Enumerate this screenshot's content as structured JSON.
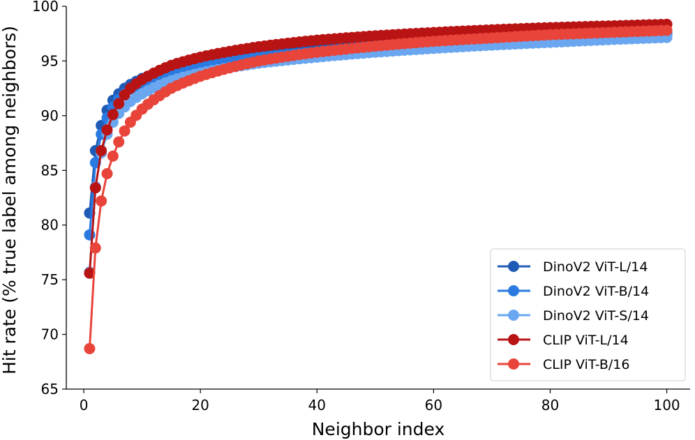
{
  "chart_data": {
    "type": "line",
    "title": "",
    "xlabel": "Neighbor index",
    "ylabel": "Hit rate (% true label among neighbors)",
    "xlim": [
      -3,
      104
    ],
    "ylim": [
      65,
      100
    ],
    "xticks": [
      0,
      20,
      40,
      60,
      80,
      100
    ],
    "yticks": [
      65,
      70,
      75,
      80,
      85,
      90,
      95,
      100
    ],
    "grid": false,
    "legend_position": "lower-right",
    "x": "1..100",
    "series": [
      {
        "name": "DinoV2 ViT-L/14",
        "color": "#1f5bb5",
        "anchors": [
          [
            1,
            81.1
          ],
          [
            2,
            86.8
          ],
          [
            3,
            89.1
          ],
          [
            4,
            90.5
          ],
          [
            5,
            91.4
          ],
          [
            6,
            92.0
          ],
          [
            7,
            92.5
          ],
          [
            8,
            92.85
          ],
          [
            10,
            93.4
          ],
          [
            15,
            94.3
          ],
          [
            20,
            94.9
          ],
          [
            30,
            95.6
          ],
          [
            40,
            96.05
          ],
          [
            50,
            96.4
          ],
          [
            60,
            96.7
          ],
          [
            70,
            96.95
          ],
          [
            80,
            97.2
          ],
          [
            90,
            97.4
          ],
          [
            100,
            97.6
          ]
        ]
      },
      {
        "name": "DinoV2 ViT-B/14",
        "color": "#2a7ae2",
        "anchors": [
          [
            1,
            79.1
          ],
          [
            2,
            85.7
          ],
          [
            3,
            88.3
          ],
          [
            4,
            89.8
          ],
          [
            5,
            90.8
          ],
          [
            6,
            91.5
          ],
          [
            7,
            92.0
          ],
          [
            8,
            92.4
          ],
          [
            10,
            93.0
          ],
          [
            15,
            94.0
          ],
          [
            20,
            94.6
          ],
          [
            30,
            95.3
          ],
          [
            40,
            95.8
          ],
          [
            50,
            96.2
          ],
          [
            60,
            96.5
          ],
          [
            70,
            96.8
          ],
          [
            80,
            97.05
          ],
          [
            90,
            97.25
          ],
          [
            100,
            97.45
          ]
        ]
      },
      {
        "name": "DinoV2 ViT-S/14",
        "color": "#6aa7f0",
        "anchors": [
          [
            1,
            75.7
          ],
          [
            2,
            83.5
          ],
          [
            3,
            86.6
          ],
          [
            4,
            88.3
          ],
          [
            5,
            89.4
          ],
          [
            6,
            90.2
          ],
          [
            7,
            90.8
          ],
          [
            8,
            91.3
          ],
          [
            10,
            92.0
          ],
          [
            15,
            93.2
          ],
          [
            20,
            93.9
          ],
          [
            30,
            94.8
          ],
          [
            40,
            95.35
          ],
          [
            50,
            95.8
          ],
          [
            60,
            96.15
          ],
          [
            70,
            96.45
          ],
          [
            80,
            96.7
          ],
          [
            90,
            96.95
          ],
          [
            100,
            97.15
          ]
        ]
      },
      {
        "name": "CLIP ViT-L/14",
        "color": "#b81414",
        "anchors": [
          [
            1,
            75.6
          ],
          [
            2,
            83.4
          ],
          [
            3,
            86.8
          ],
          [
            4,
            88.7
          ],
          [
            5,
            90.1
          ],
          [
            6,
            91.1
          ],
          [
            7,
            91.9
          ],
          [
            8,
            92.5
          ],
          [
            10,
            93.3
          ],
          [
            15,
            94.6
          ],
          [
            20,
            95.35
          ],
          [
            30,
            96.3
          ],
          [
            40,
            96.9
          ],
          [
            50,
            97.3
          ],
          [
            60,
            97.6
          ],
          [
            70,
            97.85
          ],
          [
            80,
            98.05
          ],
          [
            90,
            98.2
          ],
          [
            100,
            98.35
          ]
        ]
      },
      {
        "name": "CLIP ViT-B/16",
        "color": "#e8443a",
        "anchors": [
          [
            1,
            68.7
          ],
          [
            2,
            77.9
          ],
          [
            3,
            82.2
          ],
          [
            4,
            84.7
          ],
          [
            5,
            86.3
          ],
          [
            6,
            87.6
          ],
          [
            7,
            88.6
          ],
          [
            8,
            89.4
          ],
          [
            10,
            90.6
          ],
          [
            15,
            92.5
          ],
          [
            20,
            93.6
          ],
          [
            30,
            95.0
          ],
          [
            40,
            95.8
          ],
          [
            50,
            96.35
          ],
          [
            60,
            96.8
          ],
          [
            70,
            97.1
          ],
          [
            80,
            97.4
          ],
          [
            90,
            97.6
          ],
          [
            100,
            97.8
          ]
        ]
      }
    ]
  }
}
